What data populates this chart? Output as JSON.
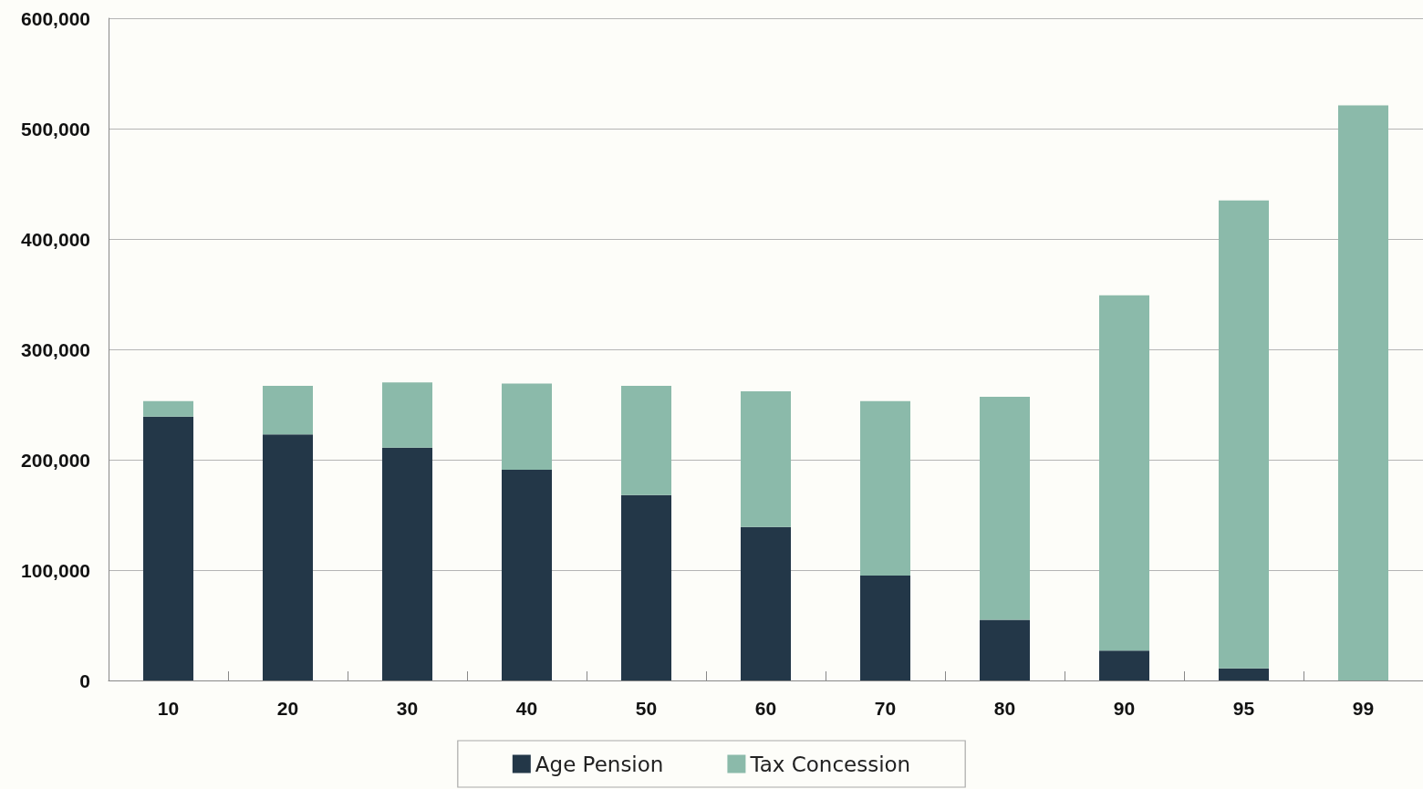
{
  "chart_data": {
    "type": "bar",
    "stacked": true,
    "categories": [
      "10",
      "20",
      "30",
      "40",
      "50",
      "60",
      "70",
      "80",
      "90",
      "95",
      "99"
    ],
    "series": [
      {
        "name": "Age Pension",
        "color": "#233748",
        "values": [
          239000,
          223000,
          211000,
          191000,
          168000,
          139000,
          95000,
          55000,
          27000,
          11000,
          0
        ]
      },
      {
        "name": "Tax Concession",
        "color": "#8bbaaa",
        "values": [
          14000,
          44000,
          59000,
          78000,
          99000,
          123000,
          158000,
          202000,
          322000,
          424000,
          521000
        ]
      }
    ],
    "ylim": [
      0,
      600000
    ],
    "yticks": [
      {
        "value": 0,
        "label": "0"
      },
      {
        "value": 100000,
        "label": "100,000"
      },
      {
        "value": 200000,
        "label": "200,000"
      },
      {
        "value": 300000,
        "label": "300,000"
      },
      {
        "value": 400000,
        "label": "400,000"
      },
      {
        "value": 500000,
        "label": "500,000"
      },
      {
        "value": 600000,
        "label": "600,000"
      }
    ],
    "grid": "y",
    "legend": "bottom"
  }
}
